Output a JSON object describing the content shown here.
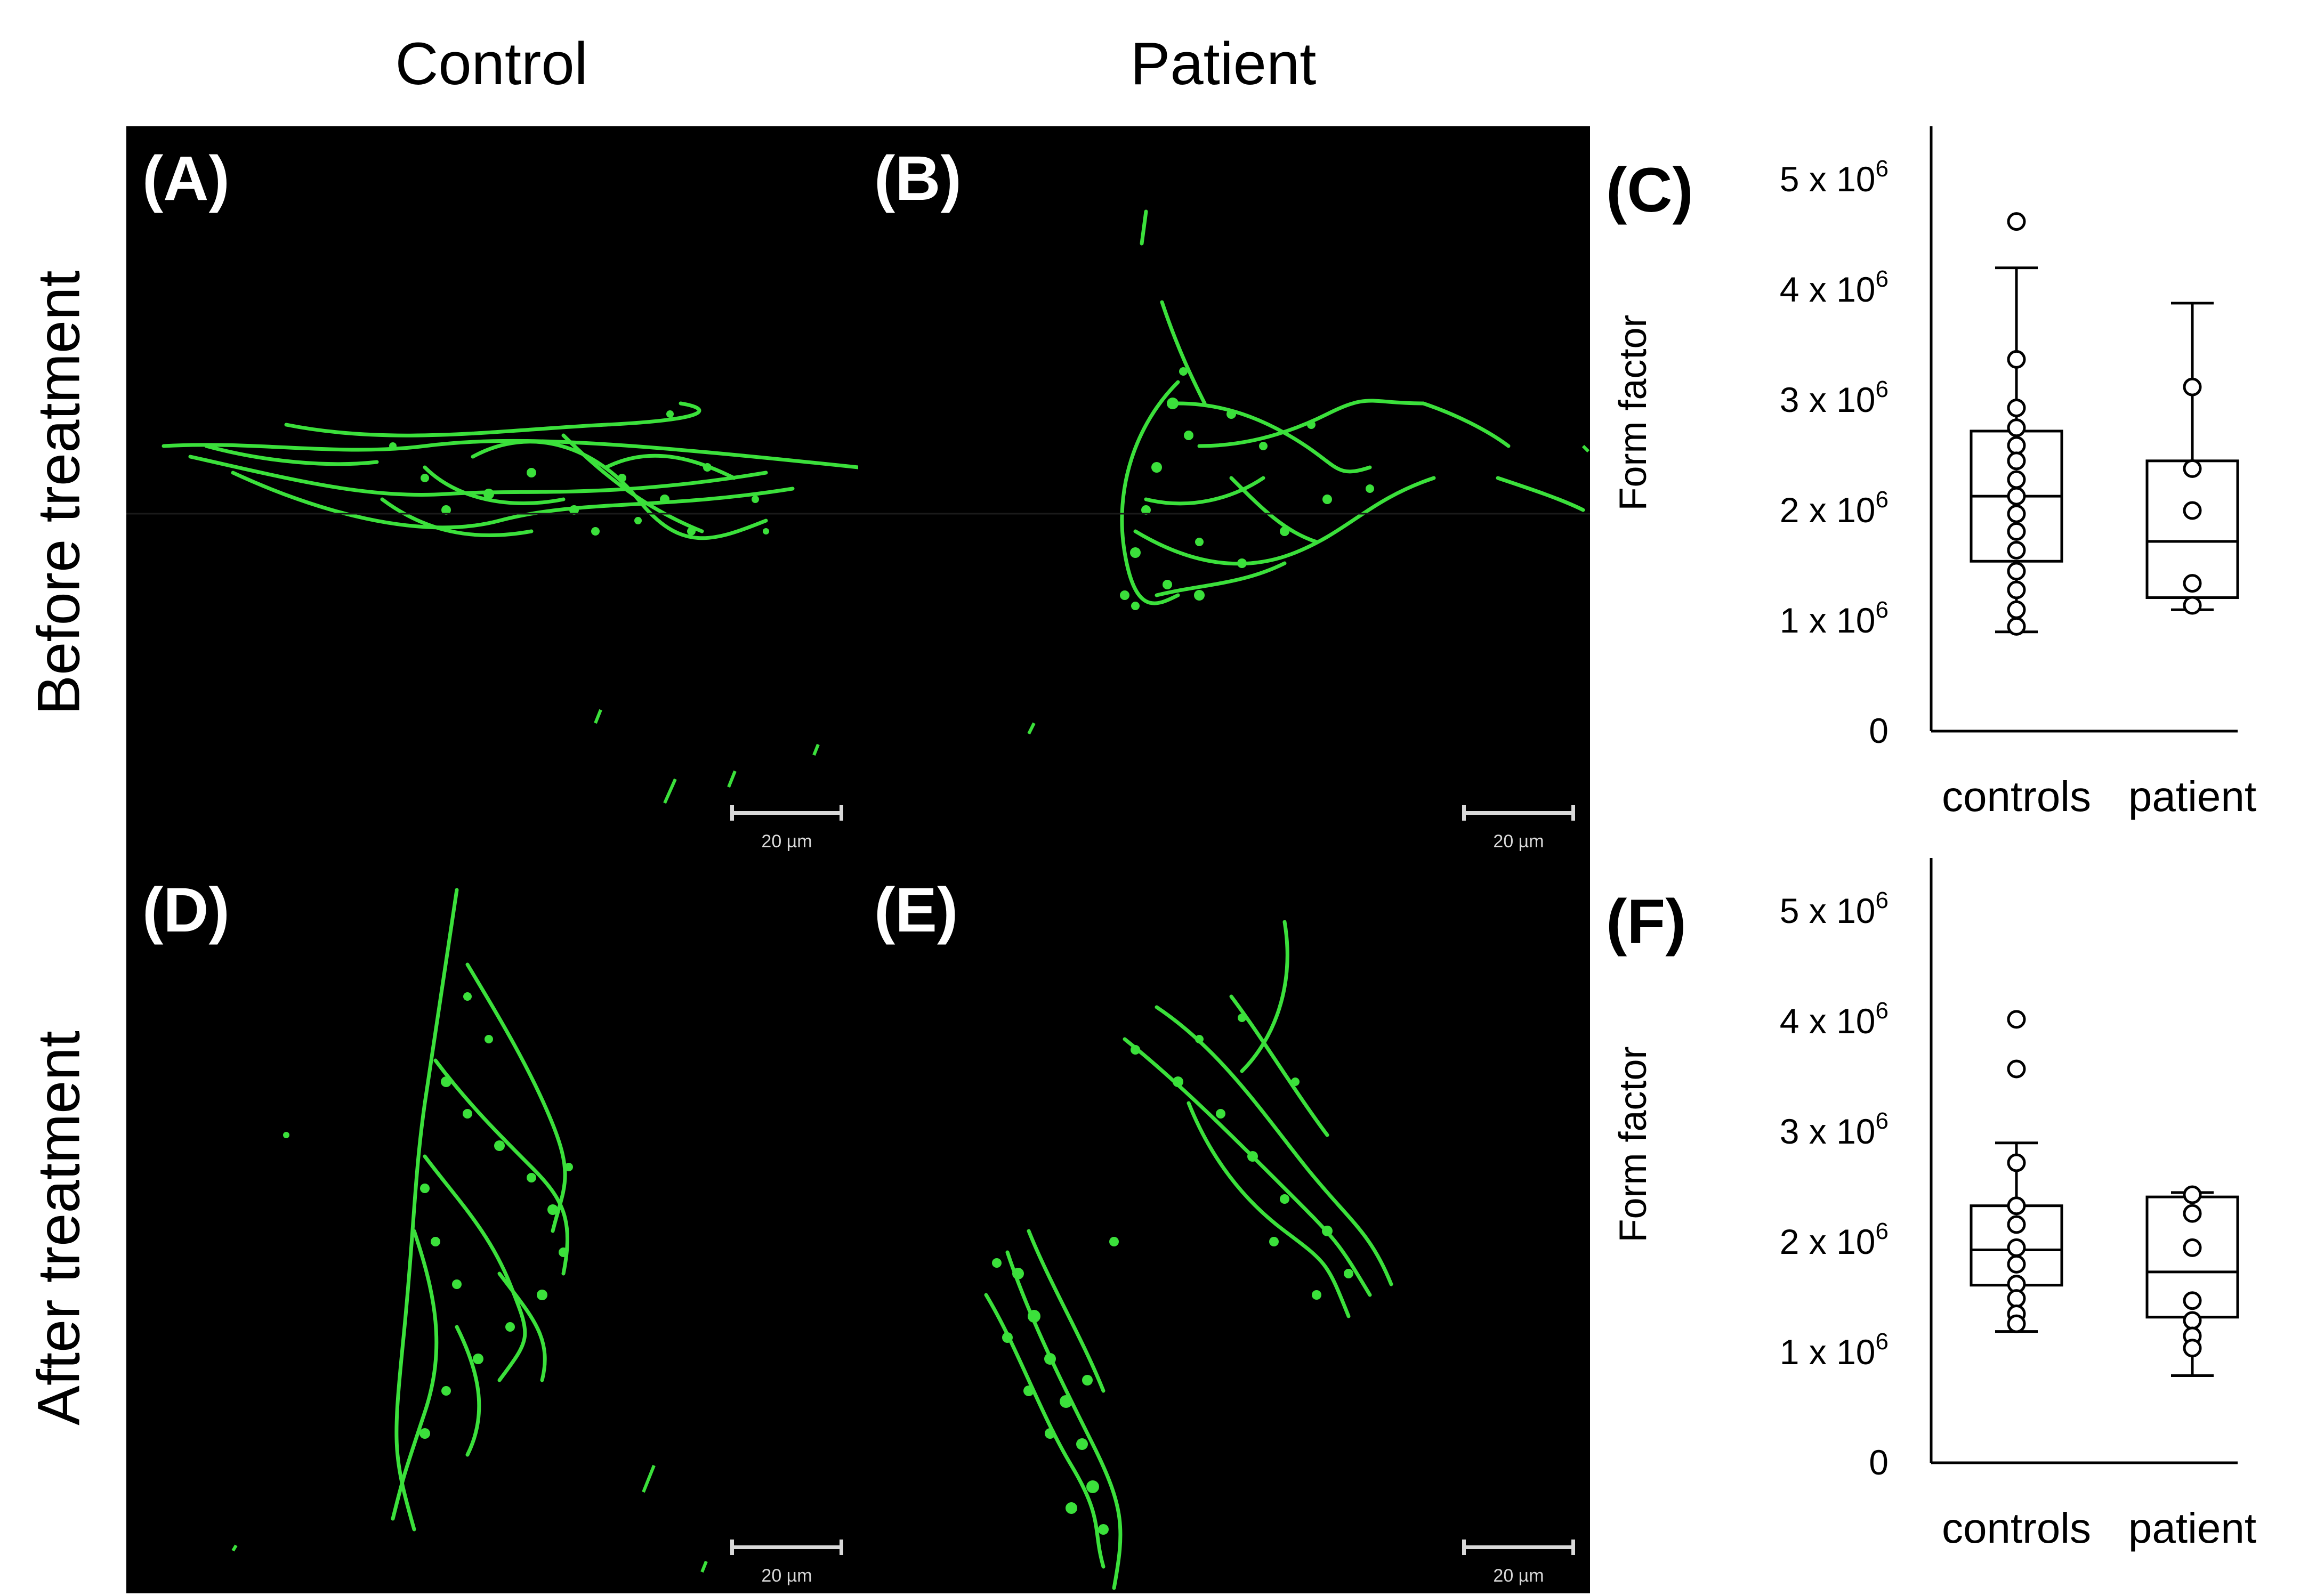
{
  "figure": {
    "columns": [
      "Control",
      "Patient"
    ],
    "rows": [
      "Before treatment",
      "After treatment"
    ],
    "micrographs": [
      {
        "label": "(A)",
        "scalebar": "20 µm"
      },
      {
        "label": "(B)",
        "scalebar": "20 µm"
      },
      {
        "label": "(D)",
        "scalebar": "20 µm"
      },
      {
        "label": "(E)",
        "scalebar": "20 µm"
      }
    ],
    "colors": {
      "mitochondria": "#3be03b",
      "background": "#000000",
      "scalebar": "#d9d9d9"
    }
  },
  "chart_data": [
    {
      "panel": "(C)",
      "type": "box",
      "ylabel": "Form factor",
      "ylim": [
        0,
        5000000
      ],
      "yticks": [
        {
          "value": 0,
          "base": "0",
          "exp": ""
        },
        {
          "value": 1000000,
          "base": "1 x 10",
          "exp": "6"
        },
        {
          "value": 2000000,
          "base": "2 x 10",
          "exp": "6"
        },
        {
          "value": 3000000,
          "base": "3 x 10",
          "exp": "6"
        },
        {
          "value": 4000000,
          "base": "4 x 10",
          "exp": "6"
        },
        {
          "value": 5000000,
          "base": "5 x 10",
          "exp": "6"
        }
      ],
      "categories": [
        "controls",
        "patient"
      ],
      "boxes": [
        {
          "min": 900000,
          "q1": 1540000,
          "median": 2130000,
          "q3": 2720000,
          "max": 4200000,
          "points": [
            4620000,
            3370000,
            2930000,
            2750000,
            2590000,
            2450000,
            2280000,
            2130000,
            1970000,
            1810000,
            1640000,
            1450000,
            1280000,
            1100000,
            950000
          ]
        },
        {
          "min": 1100000,
          "q1": 1210000,
          "median": 1720000,
          "q3": 2450000,
          "max": 3880000,
          "points": [
            3120000,
            2380000,
            2000000,
            1340000,
            1140000
          ]
        }
      ]
    },
    {
      "panel": "(F)",
      "type": "box",
      "ylabel": "Form factor",
      "ylim": [
        0,
        5000000
      ],
      "yticks": [
        {
          "value": 0,
          "base": "0",
          "exp": ""
        },
        {
          "value": 1000000,
          "base": "1 x 10",
          "exp": "6"
        },
        {
          "value": 2000000,
          "base": "2 x 10",
          "exp": "6"
        },
        {
          "value": 3000000,
          "base": "3 x 10",
          "exp": "6"
        },
        {
          "value": 4000000,
          "base": "4 x 10",
          "exp": "6"
        },
        {
          "value": 5000000,
          "base": "5 x 10",
          "exp": "6"
        }
      ],
      "categories": [
        "controls",
        "patient"
      ],
      "boxes": [
        {
          "min": 1190000,
          "q1": 1610000,
          "median": 1930000,
          "q3": 2330000,
          "max": 2900000,
          "points": [
            4020000,
            3570000,
            2720000,
            2330000,
            2160000,
            1950000,
            1800000,
            1620000,
            1490000,
            1350000,
            1260000
          ]
        },
        {
          "min": 790000,
          "q1": 1320000,
          "median": 1730000,
          "q3": 2410000,
          "max": 2450000,
          "points": [
            2430000,
            2260000,
            1950000,
            1470000,
            1290000,
            1150000,
            1040000
          ]
        }
      ]
    }
  ]
}
